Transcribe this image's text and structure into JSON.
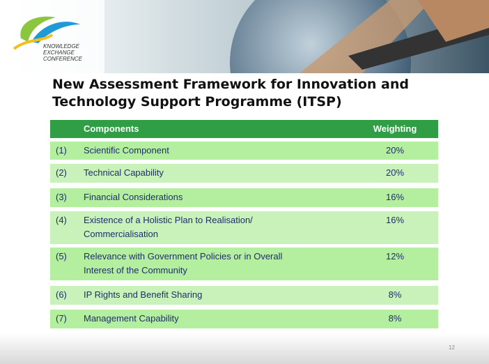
{
  "logo": {
    "lines": [
      "KNOWLEDGE",
      "EXCHANGE",
      "CONFERENCE"
    ]
  },
  "title": [
    "New Assessment Framework for Innovation and",
    "Technology Support Programme (ITSP)"
  ],
  "table": {
    "header": [
      "Components",
      "Weighting"
    ],
    "rows": [
      {
        "no": "(1)",
        "component": [
          "Scientific Component"
        ],
        "weighting": "20%"
      },
      {
        "no": "(2)",
        "component": [
          "Technical Capability"
        ],
        "weighting": "20%"
      },
      {
        "no": "(3)",
        "component": [
          "Financial Considerations"
        ],
        "weighting": "16%"
      },
      {
        "no": "(4)",
        "component": [
          "Existence of a Holistic Plan to Realisation/",
          "Commercialisation"
        ],
        "weighting": "16%"
      },
      {
        "no": "(5)",
        "component": [
          "Relevance with Government Policies or in Overall",
          "Interest of the Community"
        ],
        "weighting": "12%"
      },
      {
        "no": "(6)",
        "component": [
          "IP Rights and Benefit Sharing"
        ],
        "weighting": "8%"
      },
      {
        "no": "(7)",
        "component": [
          "Management Capability"
        ],
        "weighting": "8%"
      }
    ]
  },
  "page_number": "12"
}
